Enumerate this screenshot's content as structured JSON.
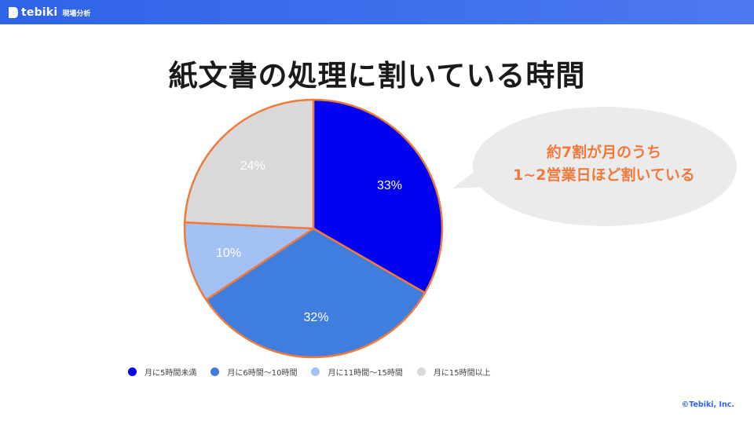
{
  "header": {
    "brand_name": "tebiki",
    "brand_sub": "現場分析"
  },
  "title": "紙文書の処理に割いている時間",
  "callout": {
    "line1": "約7割が月のうち",
    "line2": "1~2営業日ほど割いている"
  },
  "footer": {
    "copyright": "©Tebiki, Inc."
  },
  "chart_data": {
    "type": "pie",
    "title": "",
    "start_angle_deg": 0,
    "direction": "clockwise",
    "slice_border_color": "#f07a3c",
    "slices": [
      {
        "label": "月に5時間未満",
        "value": 33,
        "display": "33%",
        "color": "#0000f2"
      },
      {
        "label": "月に6時間〜10時間",
        "value": 32,
        "display": "32%",
        "color": "#3f7ede"
      },
      {
        "label": "月に11時間〜15時間",
        "value": 10,
        "display": "10%",
        "color": "#a4c1f5"
      },
      {
        "label": "月に15時間以上",
        "value": 24,
        "display": "24%",
        "color": "#d9d9d9"
      }
    ],
    "legend_position": "bottom"
  },
  "colors": {
    "accent": "#f07a3c",
    "brand": "#2f63e8",
    "callout_bg": "#ebebeb"
  }
}
